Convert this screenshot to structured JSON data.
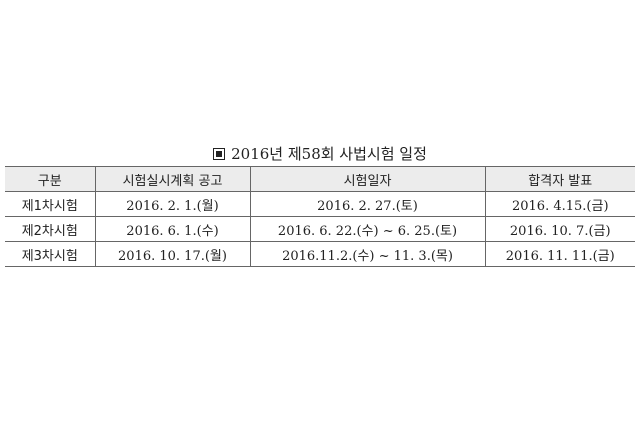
{
  "title": "2016년 제58회 사법시험 일정",
  "table": {
    "headers": [
      "구분",
      "시험실시계획 공고",
      "시험일자",
      "합격자 발표"
    ],
    "rows": [
      [
        "제1차시험",
        "2016. 2. 1.(월)",
        "2016. 2. 27.(토)",
        "2016. 4.15.(금)"
      ],
      [
        "제2차시험",
        "2016. 6. 1.(수)",
        "2016. 6. 22.(수) ~ 6. 25.(토)",
        "2016. 10. 7.(금)"
      ],
      [
        "제3차시험",
        "2016. 10. 17.(월)",
        "2016.11.2.(수) ~ 11. 3.(목)",
        "2016. 11. 11.(금)"
      ]
    ]
  }
}
